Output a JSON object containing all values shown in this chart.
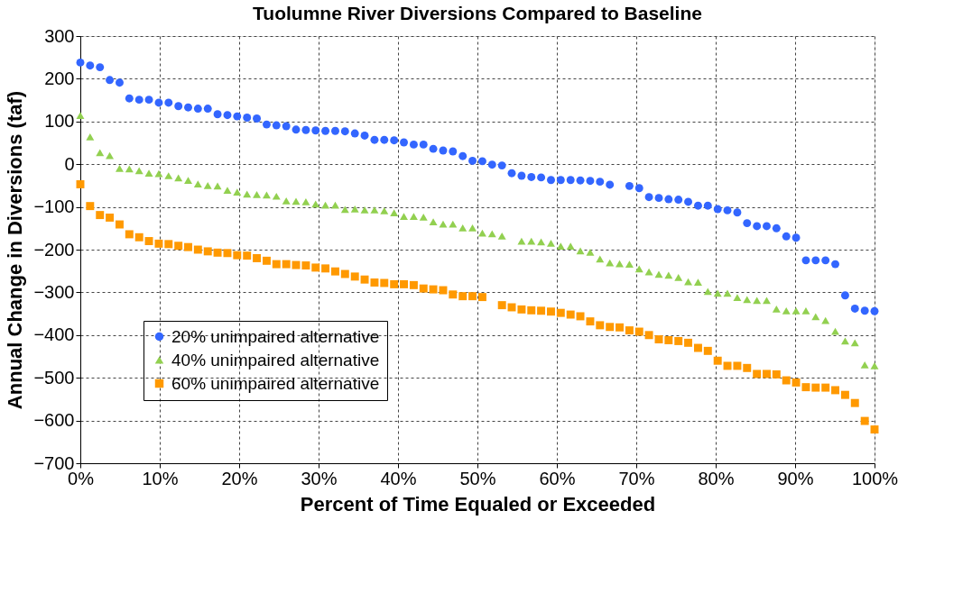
{
  "chart_data": {
    "type": "scatter",
    "title": "Tuolumne River Diversions Compared to Baseline",
    "xlabel": "Percent of Time Equaled or Exceeded",
    "ylabel": "Annual Change in Diversions (taf)",
    "x": [
      0,
      1.23,
      2.47,
      3.7,
      4.94,
      6.17,
      7.41,
      8.64,
      9.88,
      11.11,
      12.35,
      13.58,
      14.81,
      16.05,
      17.28,
      18.52,
      19.75,
      20.99,
      22.22,
      23.46,
      24.69,
      25.93,
      27.16,
      28.4,
      29.63,
      30.86,
      32.1,
      33.33,
      34.57,
      35.8,
      37.04,
      38.27,
      39.51,
      40.74,
      41.98,
      43.21,
      44.44,
      45.68,
      46.91,
      48.15,
      49.38,
      50.62,
      51.85,
      53.09,
      54.32,
      55.56,
      56.79,
      58.02,
      59.26,
      60.49,
      61.73,
      62.96,
      64.2,
      65.43,
      66.67,
      67.9,
      69.14,
      70.37,
      71.6,
      72.84,
      74.07,
      75.31,
      76.54,
      77.78,
      79.01,
      80.25,
      81.48,
      82.72,
      83.95,
      85.19,
      86.42,
      87.65,
      88.89,
      90.12,
      91.36,
      92.59,
      93.83,
      95.06,
      96.3,
      97.53,
      98.77,
      100
    ],
    "series": [
      {
        "name": "20% unimpaired alternative",
        "color": "#3366ff",
        "marker": "circle",
        "values": [
          238,
          231,
          227,
          197,
          191,
          154,
          151,
          151,
          144,
          144,
          136,
          133,
          130,
          130,
          117,
          115,
          112,
          109,
          107,
          93,
          91,
          89,
          81,
          80,
          79,
          78,
          78,
          77,
          72,
          67,
          57,
          57,
          56,
          51,
          46,
          46,
          36,
          32,
          30,
          19,
          8,
          7,
          -1,
          -3,
          -21,
          -27,
          -30,
          -31,
          -37,
          -37,
          -37,
          -38,
          -39,
          -41,
          -48,
          null,
          -51,
          -56,
          -77,
          -79,
          -82,
          -83,
          -88,
          -97,
          -97,
          -105,
          -108,
          -113,
          -138,
          -145,
          -145,
          -150,
          -169,
          -172,
          -225,
          -225,
          -225,
          -234,
          -307,
          -338,
          -343,
          -344
        ]
      },
      {
        "name": "40% unimpaired alternative",
        "color": "#92d050",
        "marker": "triangle",
        "values": [
          114,
          64,
          27,
          20,
          -10,
          -11,
          -15,
          -21,
          -22,
          -27,
          -32,
          -38,
          -46,
          -50,
          -51,
          -61,
          -65,
          -70,
          -71,
          -72,
          -75,
          -86,
          -87,
          -88,
          -93,
          -96,
          -96,
          -106,
          -105,
          -107,
          -107,
          -109,
          -114,
          -122,
          -122,
          -124,
          -135,
          -140,
          -140,
          -149,
          -149,
          -161,
          -163,
          -168,
          null,
          -180,
          -180,
          -182,
          -185,
          -192,
          -192,
          -203,
          -206,
          -222,
          -231,
          -233,
          -234,
          -245,
          -252,
          -258,
          -260,
          -265,
          -275,
          -276,
          -298,
          -302,
          -302,
          -312,
          -317,
          -319,
          -319,
          -339,
          -343,
          -343,
          -343,
          -357,
          -366,
          -391,
          -414,
          -418,
          -470,
          -472
        ]
      },
      {
        "name": "60% unimpaired alternative",
        "color": "#ff9900",
        "marker": "square",
        "values": [
          -47,
          -98,
          -119,
          -125,
          -141,
          -164,
          -171,
          -180,
          -186,
          -187,
          -191,
          -194,
          -200,
          -204,
          -207,
          -208,
          -213,
          -214,
          -220,
          -226,
          -234,
          -234,
          -236,
          -237,
          -242,
          -244,
          -251,
          -257,
          -263,
          -270,
          -277,
          -278,
          -281,
          -281,
          -283,
          -291,
          -293,
          -295,
          -305,
          -309,
          -309,
          -311,
          null,
          -330,
          -335,
          -340,
          -342,
          -343,
          -345,
          -348,
          -352,
          -356,
          -368,
          -377,
          -381,
          -382,
          -389,
          -392,
          -400,
          -410,
          -412,
          -414,
          -418,
          -430,
          -437,
          -460,
          -472,
          -472,
          -477,
          -491,
          -491,
          -492,
          -506,
          -511,
          -522,
          -523,
          -523,
          -529,
          -540,
          -559,
          -601,
          -621
        ]
      }
    ],
    "xlim": [
      0,
      100
    ],
    "xticks": [
      {
        "value": 0,
        "label": "0%"
      },
      {
        "value": 10,
        "label": "10%"
      },
      {
        "value": 20,
        "label": "20%"
      },
      {
        "value": 30,
        "label": "30%"
      },
      {
        "value": 40,
        "label": "40%"
      },
      {
        "value": 50,
        "label": "50%"
      },
      {
        "value": 60,
        "label": "60%"
      },
      {
        "value": 70,
        "label": "70%"
      },
      {
        "value": 80,
        "label": "80%"
      },
      {
        "value": 90,
        "label": "90%"
      },
      {
        "value": 100,
        "label": "100%"
      }
    ],
    "ylim": [
      -700,
      300
    ],
    "yticks": [
      -700,
      -600,
      -500,
      -400,
      -300,
      -200,
      -100,
      0,
      100,
      200,
      300
    ],
    "grid": true,
    "legend": "bottom left"
  }
}
